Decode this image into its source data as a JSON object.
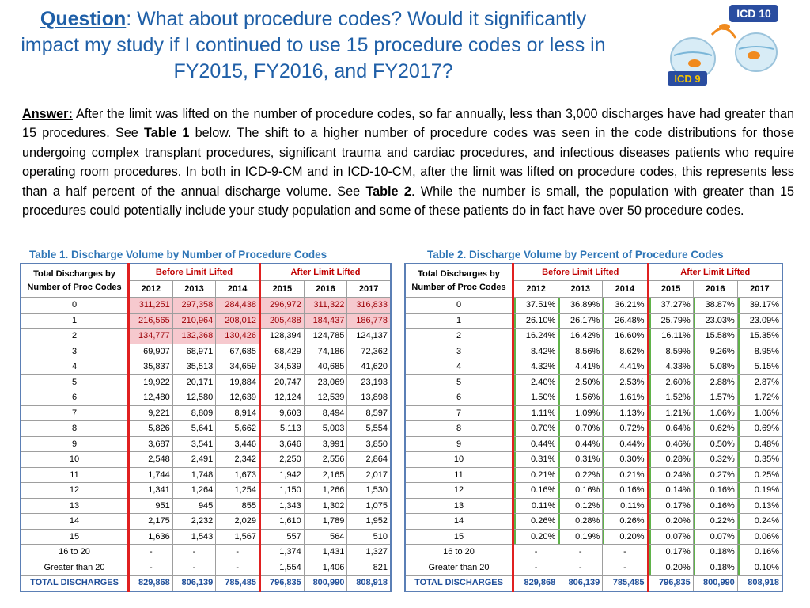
{
  "title": {
    "question_label": "Question",
    "text": ":  What about procedure codes? Would it significantly impact my study if I continued to use 15 procedure codes or less in FY2015, FY2016, and FY2017?"
  },
  "logo": {
    "top_label": "ICD 10",
    "bottom_label": "ICD 9"
  },
  "answer": {
    "label": "Answer:",
    "part1": " After the limit was lifted on the number of procedure codes, so far annually, less than 3,000 discharges have had greater than 15 procedures. See ",
    "table1_ref": "Table 1",
    "part2": " below. The shift to a higher number of procedure codes was seen in the code distributions for those undergoing complex transplant procedures, significant trauma and cardiac procedures, and infectious diseases patients who require operating room procedures. In both in ICD-9-CM and in ICD-10-CM, after the limit was lifted on procedure codes, this represents less than a half percent of the annual discharge volume. See ",
    "table2_ref": "Table 2",
    "part3": ". While the number is small, the population with greater than 15 procedures could potentially include your study population and some of these patients do in fact have over 50 procedure codes."
  },
  "table1": {
    "caption": "Table 1. Discharge Volume by Number of Procedure Codes",
    "corner_header": "Total Discharges by Number of Proc Codes",
    "group_before": "Before Limit Lifted",
    "group_after": "After Limit Lifted",
    "years": [
      "2012",
      "2013",
      "2014",
      "2015",
      "2016",
      "2017"
    ],
    "rows": [
      {
        "label": "0",
        "values": [
          "311,251",
          "297,358",
          "284,438",
          "296,972",
          "311,322",
          "316,833"
        ],
        "pink": true
      },
      {
        "label": "1",
        "values": [
          "216,565",
          "210,964",
          "208,012",
          "205,488",
          "184,437",
          "186,778"
        ],
        "pink": true
      },
      {
        "label": "2",
        "values": [
          "134,777",
          "132,368",
          "130,426",
          "128,394",
          "124,785",
          "124,137"
        ],
        "pink_before": true
      },
      {
        "label": "3",
        "values": [
          "69,907",
          "68,971",
          "67,685",
          "68,429",
          "74,186",
          "72,362"
        ]
      },
      {
        "label": "4",
        "values": [
          "35,837",
          "35,513",
          "34,659",
          "34,539",
          "40,685",
          "41,620"
        ]
      },
      {
        "label": "5",
        "values": [
          "19,922",
          "20,171",
          "19,884",
          "20,747",
          "23,069",
          "23,193"
        ]
      },
      {
        "label": "6",
        "values": [
          "12,480",
          "12,580",
          "12,639",
          "12,124",
          "12,539",
          "13,898"
        ]
      },
      {
        "label": "7",
        "values": [
          "9,221",
          "8,809",
          "8,914",
          "9,603",
          "8,494",
          "8,597"
        ]
      },
      {
        "label": "8",
        "values": [
          "5,826",
          "5,641",
          "5,662",
          "5,113",
          "5,003",
          "5,554"
        ]
      },
      {
        "label": "9",
        "values": [
          "3,687",
          "3,541",
          "3,446",
          "3,646",
          "3,991",
          "3,850"
        ]
      },
      {
        "label": "10",
        "values": [
          "2,548",
          "2,491",
          "2,342",
          "2,250",
          "2,556",
          "2,864"
        ]
      },
      {
        "label": "11",
        "values": [
          "1,744",
          "1,748",
          "1,673",
          "1,942",
          "2,165",
          "2,017"
        ]
      },
      {
        "label": "12",
        "values": [
          "1,341",
          "1,264",
          "1,254",
          "1,150",
          "1,266",
          "1,530"
        ]
      },
      {
        "label": "13",
        "values": [
          "951",
          "945",
          "855",
          "1,343",
          "1,302",
          "1,075"
        ]
      },
      {
        "label": "14",
        "values": [
          "2,175",
          "2,232",
          "2,029",
          "1,610",
          "1,789",
          "1,952"
        ]
      },
      {
        "label": "15",
        "values": [
          "1,636",
          "1,543",
          "1,567",
          "557",
          "564",
          "510"
        ]
      },
      {
        "label": "16 to 20",
        "values": [
          "-",
          "-",
          "-",
          "1,374",
          "1,431",
          "1,327"
        ]
      },
      {
        "label": "Greater than 20",
        "values": [
          "-",
          "-",
          "-",
          "1,554",
          "1,406",
          "821"
        ]
      }
    ],
    "total": {
      "label": "TOTAL DISCHARGES",
      "values": [
        "829,868",
        "806,139",
        "785,485",
        "796,835",
        "800,990",
        "808,918"
      ]
    }
  },
  "table2": {
    "caption": "Table 2. Discharge Volume by Percent of Procedure Codes",
    "corner_header": "Total Discharges by Number of Proc Codes",
    "group_before": "Before Limit Lifted",
    "group_after": "After Limit Lifted",
    "years": [
      "2012",
      "2013",
      "2014",
      "2015",
      "2016",
      "2017"
    ],
    "rows": [
      {
        "label": "0",
        "values": [
          "37.51%",
          "36.89%",
          "36.21%",
          "37.27%",
          "38.87%",
          "39.17%"
        ]
      },
      {
        "label": "1",
        "values": [
          "26.10%",
          "26.17%",
          "26.48%",
          "25.79%",
          "23.03%",
          "23.09%"
        ]
      },
      {
        "label": "2",
        "values": [
          "16.24%",
          "16.42%",
          "16.60%",
          "16.11%",
          "15.58%",
          "15.35%"
        ]
      },
      {
        "label": "3",
        "values": [
          "8.42%",
          "8.56%",
          "8.62%",
          "8.59%",
          "9.26%",
          "8.95%"
        ]
      },
      {
        "label": "4",
        "values": [
          "4.32%",
          "4.41%",
          "4.41%",
          "4.33%",
          "5.08%",
          "5.15%"
        ]
      },
      {
        "label": "5",
        "values": [
          "2.40%",
          "2.50%",
          "2.53%",
          "2.60%",
          "2.88%",
          "2.87%"
        ]
      },
      {
        "label": "6",
        "values": [
          "1.50%",
          "1.56%",
          "1.61%",
          "1.52%",
          "1.57%",
          "1.72%"
        ]
      },
      {
        "label": "7",
        "values": [
          "1.11%",
          "1.09%",
          "1.13%",
          "1.21%",
          "1.06%",
          "1.06%"
        ]
      },
      {
        "label": "8",
        "values": [
          "0.70%",
          "0.70%",
          "0.72%",
          "0.64%",
          "0.62%",
          "0.69%"
        ]
      },
      {
        "label": "9",
        "values": [
          "0.44%",
          "0.44%",
          "0.44%",
          "0.46%",
          "0.50%",
          "0.48%"
        ]
      },
      {
        "label": "10",
        "values": [
          "0.31%",
          "0.31%",
          "0.30%",
          "0.28%",
          "0.32%",
          "0.35%"
        ]
      },
      {
        "label": "11",
        "values": [
          "0.21%",
          "0.22%",
          "0.21%",
          "0.24%",
          "0.27%",
          "0.25%"
        ]
      },
      {
        "label": "12",
        "values": [
          "0.16%",
          "0.16%",
          "0.16%",
          "0.14%",
          "0.16%",
          "0.19%"
        ]
      },
      {
        "label": "13",
        "values": [
          "0.11%",
          "0.12%",
          "0.11%",
          "0.17%",
          "0.16%",
          "0.13%"
        ]
      },
      {
        "label": "14",
        "values": [
          "0.26%",
          "0.28%",
          "0.26%",
          "0.20%",
          "0.22%",
          "0.24%"
        ]
      },
      {
        "label": "15",
        "values": [
          "0.20%",
          "0.19%",
          "0.20%",
          "0.07%",
          "0.07%",
          "0.06%"
        ]
      },
      {
        "label": "16 to 20",
        "values": [
          "-",
          "-",
          "-",
          "0.17%",
          "0.18%",
          "0.16%"
        ]
      },
      {
        "label": "Greater than 20",
        "values": [
          "-",
          "-",
          "-",
          "0.20%",
          "0.18%",
          "0.10%"
        ]
      }
    ],
    "total": {
      "label": "TOTAL DISCHARGES",
      "values": [
        "829,868",
        "806,139",
        "785,485",
        "796,835",
        "800,990",
        "808,918"
      ]
    }
  },
  "colors": {
    "title_blue": "#1f5fa7",
    "caption_blue": "#2e75b6",
    "highlight_pink": "#f6c9ce",
    "highlight_text": "#9c0006",
    "separator_red": "#e02020",
    "total_text": "#1f4e99"
  }
}
